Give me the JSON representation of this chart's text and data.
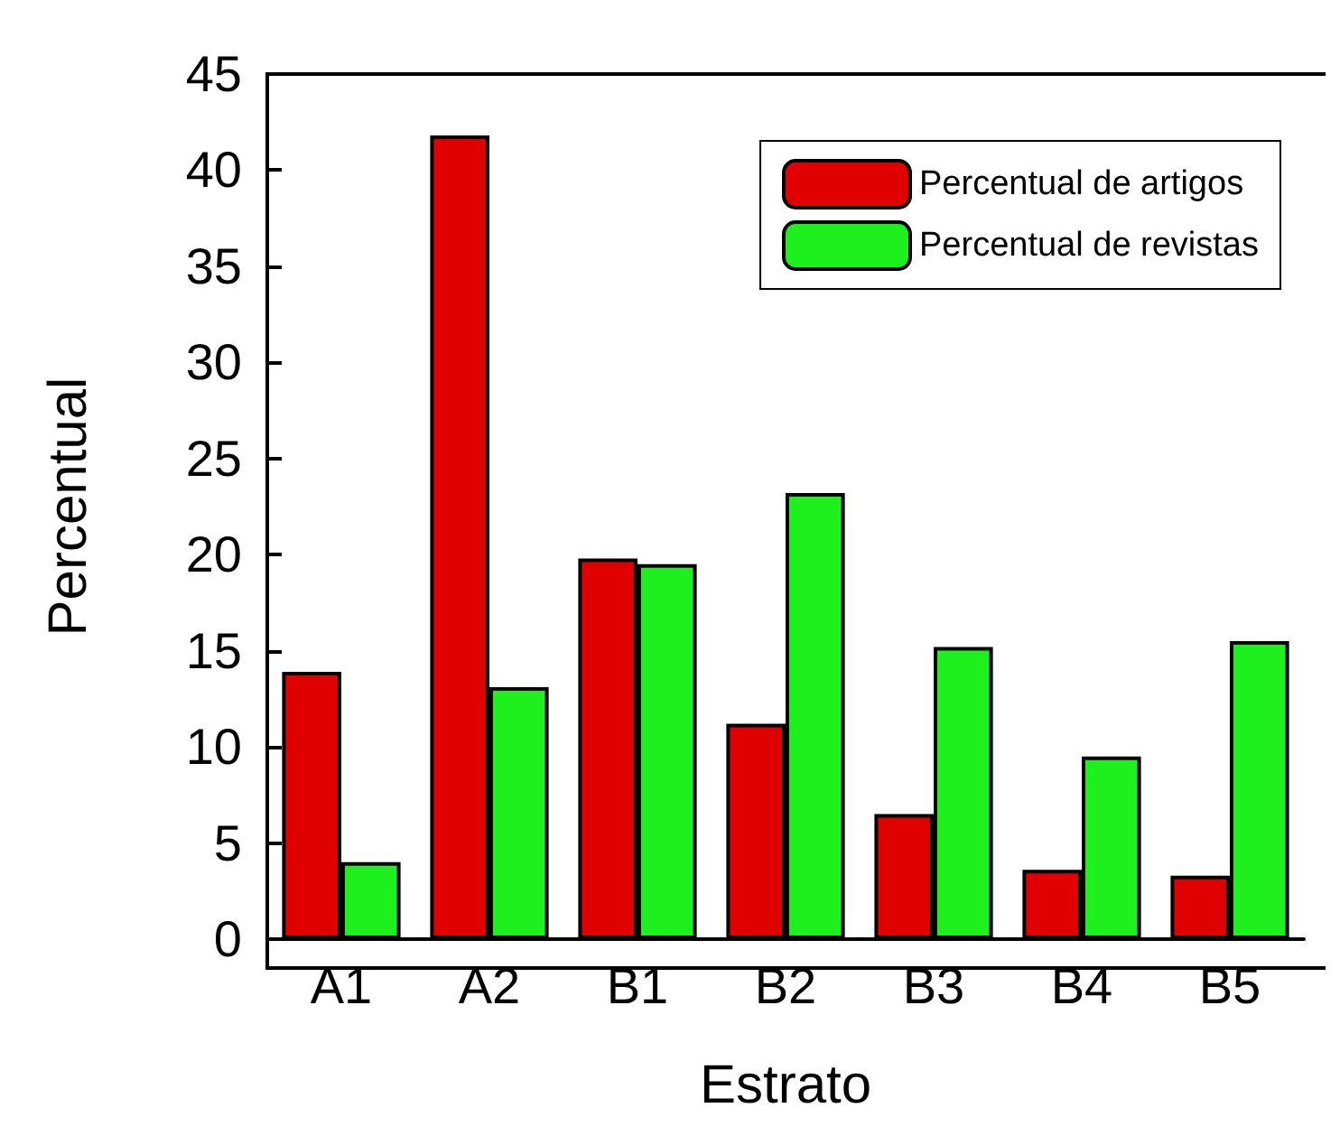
{
  "chart_data": {
    "type": "bar",
    "xlabel": "Estrato",
    "ylabel": "Percentual",
    "categories": [
      "A1",
      "A2",
      "B1",
      "B2",
      "B3",
      "B4",
      "B5"
    ],
    "series": [
      {
        "name": "Percentual de artigos",
        "color": "#e00000",
        "values": [
          13.9,
          41.8,
          19.8,
          11.2,
          6.5,
          3.6,
          3.3
        ]
      },
      {
        "name": "Percentual de revistas",
        "color": "#1ef01e",
        "values": [
          4.0,
          13.1,
          19.5,
          23.2,
          15.2,
          9.5,
          15.5
        ]
      }
    ],
    "ylim": [
      0,
      45
    ],
    "yticks": [
      0,
      5,
      10,
      15,
      20,
      25,
      30,
      35,
      40,
      45
    ],
    "grid": false,
    "legend": "top right"
  }
}
